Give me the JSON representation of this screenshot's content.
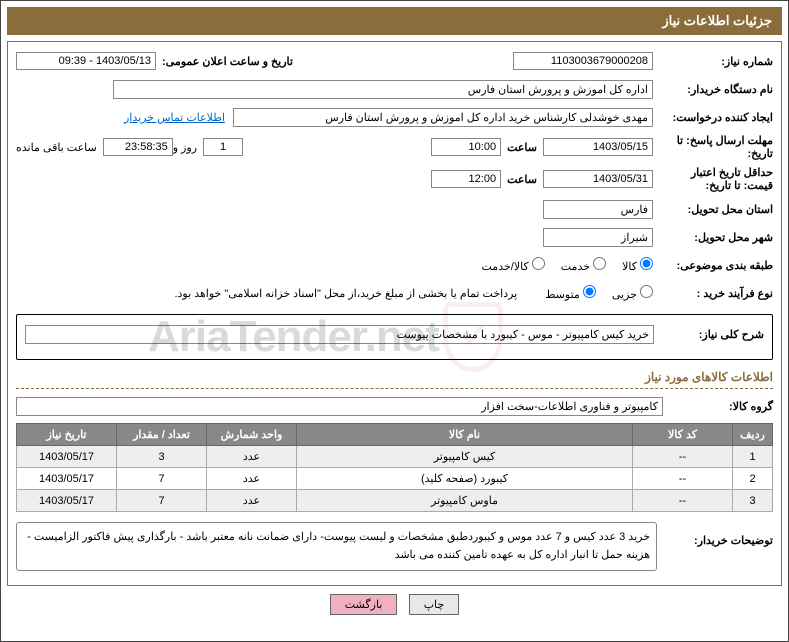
{
  "header": "جزئیات اطلاعات نیاز",
  "labels": {
    "need_no": "شماره نیاز:",
    "announce_dt": "تاریخ و ساعت اعلان عمومی:",
    "buyer_org": "نام دستگاه خریدار:",
    "requester": "ایجاد کننده درخواست:",
    "contact_link": "اطلاعات تماس خریدار",
    "deadline": "مهلت ارسال پاسخ: تا تاریخ:",
    "time": "ساعت",
    "days_and": "روز و",
    "remaining": "ساعت باقی مانده",
    "validity": "حداقل تاریخ اعتبار قیمت: تا تاریخ:",
    "delivery_province": "استان محل تحویل:",
    "delivery_city": "شهر محل تحویل:",
    "subject_class": "طبقه بندی موضوعی:",
    "purchase_type": "نوع فرآیند خرید :",
    "payment_note": "پرداخت تمام یا بخشی از مبلغ خرید،از محل \"اسناد خزانه اسلامی\" خواهد بود.",
    "need_summary": "شرح کلی نیاز:",
    "items_section": "اطلاعات کالاهای مورد نیاز",
    "goods_group": "گروه کالا:",
    "buyer_notes": "توضیحات خریدار:"
  },
  "values": {
    "need_no": "1103003679000208",
    "announce_dt": "1403/05/13 - 09:39",
    "buyer_org": "اداره کل اموزش و پرورش استان فارس",
    "requester": "مهدی خوشدلی کارشناس خرید اداره کل اموزش و پرورش استان فارس",
    "deadline_date": "1403/05/15",
    "deadline_time": "10:00",
    "days_left": "1",
    "countdown": "23:58:35",
    "validity_date": "1403/05/31",
    "validity_time": "12:00",
    "province": "فارس",
    "city": "شیراز",
    "need_summary": "خرید کیس کامپیوتر - موس - کیبورد با مشخصات پیوست",
    "goods_group": "کامپیوتر و فناوری اطلاعات-سخت افزار",
    "buyer_notes": "خرید 3 عدد کیس و 7 عدد موس و کیبوردطبق مشخصات و لیست پیوست- دارای ضمانت نانه معتبر باشد - بارگذاری پیش فاکتور الزامیست - هزینه حمل تا انبار اداره کل به عهده تامین کننده می باشد"
  },
  "radios": {
    "class_opts": [
      "کالا",
      "خدمت",
      "کالا/خدمت"
    ],
    "class_selected": 0,
    "type_opts": [
      "جزیی",
      "متوسط"
    ],
    "type_selected": 1
  },
  "table": {
    "headers": [
      "ردیف",
      "کد کالا",
      "نام کالا",
      "واحد شمارش",
      "تعداد / مقدار",
      "تاریخ نیاز"
    ],
    "rows": [
      [
        "1",
        "--",
        "کیس کامپیوتر",
        "عدد",
        "3",
        "1403/05/17"
      ],
      [
        "2",
        "--",
        "کیبورد (صفحه کلید)",
        "عدد",
        "7",
        "1403/05/17"
      ],
      [
        "3",
        "--",
        "ماوس کامپیوتر",
        "عدد",
        "7",
        "1403/05/17"
      ]
    ],
    "col_widths": [
      "40px",
      "100px",
      "auto",
      "90px",
      "90px",
      "100px"
    ]
  },
  "buttons": {
    "print": "چاپ",
    "back": "بازگشت"
  },
  "watermark": "AriaTender.net"
}
